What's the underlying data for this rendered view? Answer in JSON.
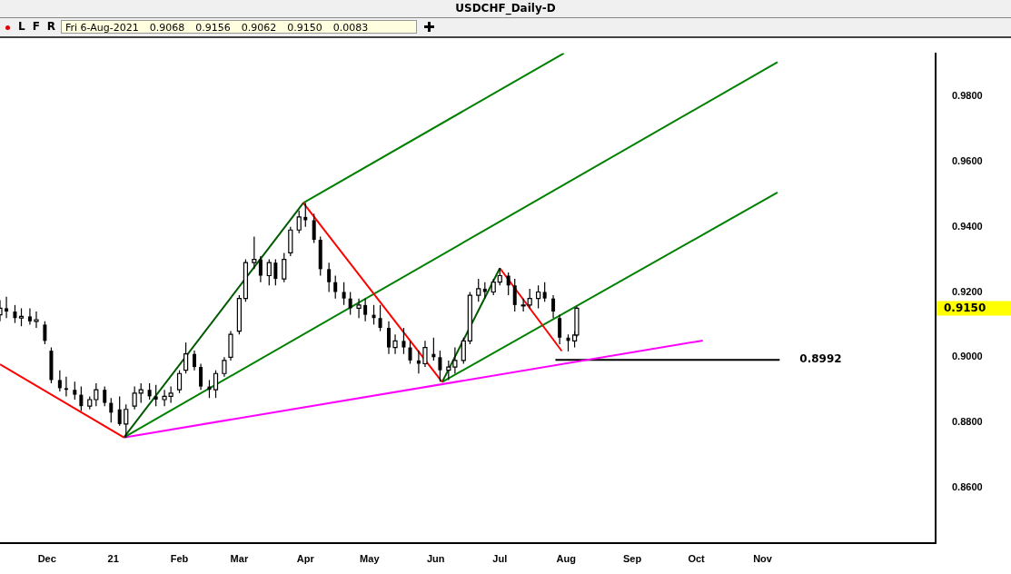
{
  "chart_data": {
    "type": "candlestick",
    "title": "USDCHF_Daily-D",
    "x": [
      "2020-11-09",
      "2020-11-12",
      "2020-11-16",
      "2020-11-19",
      "2020-11-23",
      "2020-11-26",
      "2020-11-30",
      "2020-12-03",
      "2020-12-07",
      "2020-12-10",
      "2020-12-14",
      "2020-12-17",
      "2020-12-21",
      "2020-12-24",
      "2020-12-28",
      "2020-12-31",
      "2021-01-04",
      "2021-01-07",
      "2021-01-11",
      "2021-01-14",
      "2021-01-18",
      "2021-01-21",
      "2021-01-25",
      "2021-01-28",
      "2021-02-01",
      "2021-02-04",
      "2021-02-08",
      "2021-02-11",
      "2021-02-15",
      "2021-02-18",
      "2021-02-22",
      "2021-02-25",
      "2021-03-01",
      "2021-03-04",
      "2021-03-08",
      "2021-03-11",
      "2021-03-15",
      "2021-03-18",
      "2021-03-22",
      "2021-03-25",
      "2021-03-29",
      "2021-04-01",
      "2021-04-05",
      "2021-04-08",
      "2021-04-12",
      "2021-04-15",
      "2021-04-19",
      "2021-04-22",
      "2021-04-26",
      "2021-04-29",
      "2021-05-03",
      "2021-05-06",
      "2021-05-10",
      "2021-05-13",
      "2021-05-17",
      "2021-05-20",
      "2021-05-24",
      "2021-05-27",
      "2021-05-31",
      "2021-06-03",
      "2021-06-07",
      "2021-06-10",
      "2021-06-14",
      "2021-06-17",
      "2021-06-21",
      "2021-06-24",
      "2021-06-28",
      "2021-07-01",
      "2021-07-05",
      "2021-07-08",
      "2021-07-12",
      "2021-07-15",
      "2021-07-19",
      "2021-07-22",
      "2021-07-26",
      "2021-07-29",
      "2021-08-02",
      "2021-08-05",
      "2021-08-06"
    ],
    "ohlc": [
      [
        0.913,
        0.9175,
        0.911,
        0.915
      ],
      [
        0.915,
        0.9185,
        0.912,
        0.914
      ],
      [
        0.914,
        0.916,
        0.9105,
        0.912
      ],
      [
        0.912,
        0.915,
        0.9095,
        0.9125
      ],
      [
        0.9125,
        0.915,
        0.91,
        0.911
      ],
      [
        0.911,
        0.914,
        0.909,
        0.9115
      ],
      [
        0.91,
        0.911,
        0.904,
        0.905
      ],
      [
        0.902,
        0.903,
        0.892,
        0.893
      ],
      [
        0.893,
        0.896,
        0.8895,
        0.8905
      ],
      [
        0.8905,
        0.894,
        0.888,
        0.89
      ],
      [
        0.89,
        0.8925,
        0.887,
        0.8885
      ],
      [
        0.8885,
        0.891,
        0.8835,
        0.885
      ],
      [
        0.885,
        0.888,
        0.884,
        0.887
      ],
      [
        0.887,
        0.892,
        0.885,
        0.89
      ],
      [
        0.89,
        0.891,
        0.885,
        0.886
      ],
      [
        0.886,
        0.8875,
        0.88,
        0.883
      ],
      [
        0.884,
        0.888,
        0.879,
        0.8795
      ],
      [
        0.8795,
        0.8855,
        0.8754,
        0.884
      ],
      [
        0.885,
        0.891,
        0.884,
        0.889
      ],
      [
        0.889,
        0.892,
        0.886,
        0.89
      ],
      [
        0.89,
        0.892,
        0.887,
        0.888
      ],
      [
        0.888,
        0.8915,
        0.885,
        0.887
      ],
      [
        0.887,
        0.89,
        0.885,
        0.888
      ],
      [
        0.888,
        0.891,
        0.886,
        0.889
      ],
      [
        0.89,
        0.896,
        0.889,
        0.895
      ],
      [
        0.896,
        0.9045,
        0.895,
        0.901
      ],
      [
        0.901,
        0.902,
        0.896,
        0.897
      ],
      [
        0.897,
        0.898,
        0.89,
        0.891
      ],
      [
        0.891,
        0.893,
        0.8875,
        0.89
      ],
      [
        0.89,
        0.896,
        0.8875,
        0.895
      ],
      [
        0.895,
        0.9,
        0.894,
        0.899
      ],
      [
        0.9,
        0.908,
        0.899,
        0.907
      ],
      [
        0.908,
        0.919,
        0.907,
        0.918
      ],
      [
        0.918,
        0.93,
        0.917,
        0.929
      ],
      [
        0.929,
        0.937,
        0.927,
        0.93
      ],
      [
        0.93,
        0.931,
        0.923,
        0.925
      ],
      [
        0.925,
        0.93,
        0.922,
        0.929
      ],
      [
        0.929,
        0.93,
        0.922,
        0.924
      ],
      [
        0.924,
        0.932,
        0.923,
        0.93
      ],
      [
        0.932,
        0.94,
        0.931,
        0.939
      ],
      [
        0.939,
        0.945,
        0.938,
        0.943
      ],
      [
        0.943,
        0.9473,
        0.94,
        0.942
      ],
      [
        0.942,
        0.944,
        0.935,
        0.936
      ],
      [
        0.936,
        0.937,
        0.925,
        0.927
      ],
      [
        0.927,
        0.929,
        0.92,
        0.923
      ],
      [
        0.923,
        0.925,
        0.918,
        0.92
      ],
      [
        0.92,
        0.923,
        0.916,
        0.918
      ],
      [
        0.918,
        0.92,
        0.913,
        0.915
      ],
      [
        0.915,
        0.918,
        0.912,
        0.916
      ],
      [
        0.916,
        0.918,
        0.911,
        0.913
      ],
      [
        0.913,
        0.916,
        0.91,
        0.912
      ],
      [
        0.912,
        0.916,
        0.908,
        0.909
      ],
      [
        0.909,
        0.911,
        0.901,
        0.903
      ],
      [
        0.903,
        0.907,
        0.901,
        0.905
      ],
      [
        0.905,
        0.909,
        0.901,
        0.903
      ],
      [
        0.903,
        0.905,
        0.898,
        0.899
      ],
      [
        0.899,
        0.902,
        0.895,
        0.898
      ],
      [
        0.898,
        0.905,
        0.897,
        0.903
      ],
      [
        0.901,
        0.906,
        0.899,
        0.9
      ],
      [
        0.9,
        0.902,
        0.8925,
        0.896
      ],
      [
        0.896,
        0.899,
        0.893,
        0.897
      ],
      [
        0.897,
        0.903,
        0.895,
        0.899
      ],
      [
        0.899,
        0.906,
        0.898,
        0.905
      ],
      [
        0.905,
        0.92,
        0.904,
        0.919
      ],
      [
        0.919,
        0.924,
        0.917,
        0.921
      ],
      [
        0.921,
        0.923,
        0.918,
        0.92
      ],
      [
        0.92,
        0.924,
        0.919,
        0.923
      ],
      [
        0.923,
        0.9274,
        0.922,
        0.925
      ],
      [
        0.925,
        0.926,
        0.919,
        0.922
      ],
      [
        0.922,
        0.924,
        0.914,
        0.916
      ],
      [
        0.916,
        0.918,
        0.914,
        0.916
      ],
      [
        0.916,
        0.921,
        0.915,
        0.918
      ],
      [
        0.918,
        0.922,
        0.915,
        0.92
      ],
      [
        0.92,
        0.923,
        0.917,
        0.918
      ],
      [
        0.918,
        0.919,
        0.912,
        0.914
      ],
      [
        0.912,
        0.913,
        0.904,
        0.906
      ],
      [
        0.906,
        0.907,
        0.9018,
        0.905
      ],
      [
        0.905,
        0.908,
        0.903,
        0.9068
      ],
      [
        0.9068,
        0.9156,
        0.9062,
        0.915
      ]
    ],
    "series": [
      {
        "type": "line",
        "color": "#ff0000",
        "x": [
          "2020-11-09",
          "2021-01-06"
        ],
        "values": [
          0.8978,
          0.8754
        ]
      },
      {
        "type": "line",
        "color": "#005a00",
        "x": [
          "2021-01-06",
          "2021-03-31"
        ],
        "values": [
          0.8754,
          0.9473
        ]
      },
      {
        "type": "line",
        "color": "#ff0000",
        "x": [
          "2021-03-31",
          "2021-06-04"
        ],
        "values": [
          0.9473,
          0.8924
        ]
      },
      {
        "type": "line",
        "color": "#005a00",
        "x": [
          "2021-06-04",
          "2021-07-01"
        ],
        "values": [
          0.8924,
          0.9273
        ]
      },
      {
        "type": "line",
        "color": "#ff0000",
        "x": [
          "2021-07-01",
          "2021-07-30"
        ],
        "values": [
          0.9273,
          0.9019
        ]
      },
      {
        "type": "line",
        "color": "#008000",
        "x": [
          "2021-01-06",
          "2021-11-08"
        ],
        "values": [
          0.8754,
          0.9905
        ]
      },
      {
        "type": "line",
        "color": "#008000",
        "x": [
          "2021-03-31",
          "2021-07-31"
        ],
        "values": [
          0.9473,
          0.9932
        ]
      },
      {
        "type": "line",
        "color": "#008000",
        "x": [
          "2021-06-04",
          "2021-11-08"
        ],
        "values": [
          0.8924,
          0.9505
        ]
      },
      {
        "type": "line",
        "color": "#ff00ff",
        "x": [
          "2021-01-06",
          "2021-10-04"
        ],
        "values": [
          0.8754,
          0.9051
        ]
      },
      {
        "type": "line",
        "color": "#000000",
        "x": [
          "2021-07-27",
          "2021-11-09"
        ],
        "values": [
          0.8992,
          0.8992
        ]
      }
    ],
    "xlim": [
      "2020-11-09",
      "2022-01-21"
    ],
    "xticks": [
      {
        "value": "2020-12-01",
        "label": "Dec"
      },
      {
        "value": "2021-01-01",
        "label": "21"
      },
      {
        "value": "2021-02-01",
        "label": "Feb"
      },
      {
        "value": "2021-03-01",
        "label": "Mar"
      },
      {
        "value": "2021-04-01",
        "label": "Apr"
      },
      {
        "value": "2021-05-01",
        "label": "May"
      },
      {
        "value": "2021-06-01",
        "label": "Jun"
      },
      {
        "value": "2021-07-01",
        "label": "Jul"
      },
      {
        "value": "2021-08-01",
        "label": "Aug"
      },
      {
        "value": "2021-09-01",
        "label": "Sep"
      },
      {
        "value": "2021-10-01",
        "label": "Oct"
      },
      {
        "value": "2021-11-01",
        "label": "Nov"
      }
    ],
    "ylim": [
      0.843,
      0.9932
    ],
    "yticks": [
      {
        "value": 0.86,
        "label": "0.8600"
      },
      {
        "value": 0.88,
        "label": "0.8800"
      },
      {
        "value": 0.9,
        "label": "0.9000"
      },
      {
        "value": 0.92,
        "label": "0.9200"
      },
      {
        "value": 0.94,
        "label": "0.9400"
      },
      {
        "value": 0.96,
        "label": "0.9600"
      },
      {
        "value": 0.98,
        "label": "0.9800"
      }
    ],
    "annotations": [
      "L",
      "F",
      "R",
      "Fri 6-Aug-2021",
      "0.9068",
      "0.9156",
      "0.9062",
      "0.9150",
      "0.0083",
      "0.9150",
      {
        "text": "0.8992",
        "x": "2021-11-09",
        "y": 0.8992
      }
    ]
  }
}
